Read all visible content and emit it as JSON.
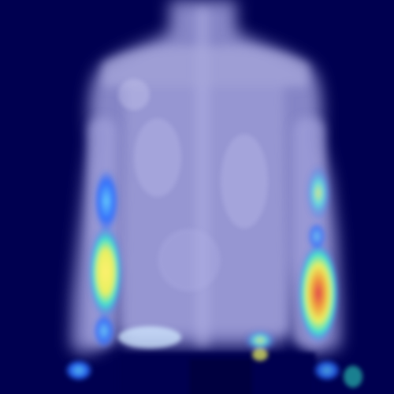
{
  "image": {
    "subject": "",
    "colors": {
      "background": "#000050",
      "garment": "#8c8ccc",
      "garment_light": "#b4b4e6",
      "heat_low": "#2a6cff",
      "heat_mid": "#38e0e0",
      "heat_high": "#f4f060",
      "heat_peak": "#e0504a"
    }
  }
}
